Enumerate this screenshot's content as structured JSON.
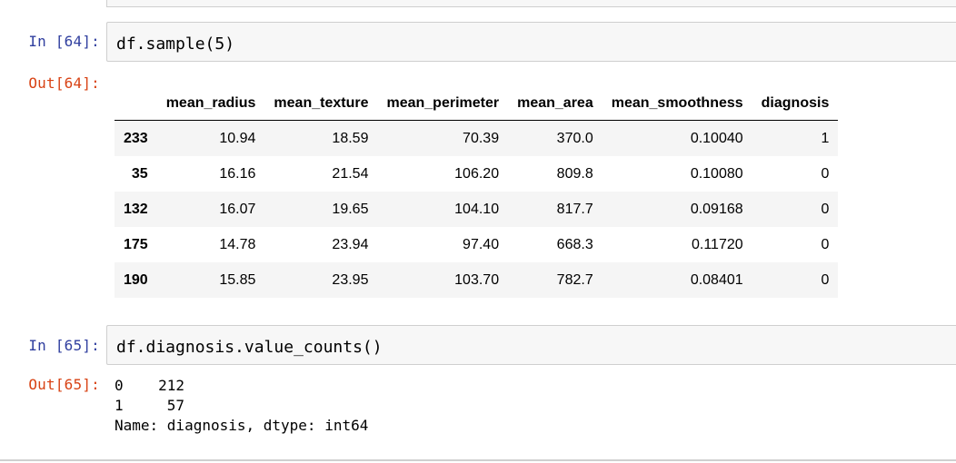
{
  "cells": [
    {
      "in_prompt": "In [64]:",
      "code": "df.sample(5)",
      "out_prompt": "Out[64]:",
      "table": {
        "columns": [
          "",
          "mean_radius",
          "mean_texture",
          "mean_perimeter",
          "mean_area",
          "mean_smoothness",
          "diagnosis"
        ],
        "rows": [
          {
            "index": "233",
            "values": [
              "10.94",
              "18.59",
              "70.39",
              "370.0",
              "0.10040",
              "1"
            ]
          },
          {
            "index": "35",
            "values": [
              "16.16",
              "21.54",
              "106.20",
              "809.8",
              "0.10080",
              "0"
            ]
          },
          {
            "index": "132",
            "values": [
              "16.07",
              "19.65",
              "104.10",
              "817.7",
              "0.09168",
              "0"
            ]
          },
          {
            "index": "175",
            "values": [
              "14.78",
              "23.94",
              "97.40",
              "668.3",
              "0.11720",
              "0"
            ]
          },
          {
            "index": "190",
            "values": [
              "15.85",
              "23.95",
              "103.70",
              "782.7",
              "0.08401",
              "0"
            ]
          }
        ]
      }
    },
    {
      "in_prompt": "In [65]:",
      "code": "df.diagnosis.value_counts()",
      "out_prompt": "Out[65]:",
      "output_lines": [
        "0    212",
        "1     57",
        "Name: diagnosis, dtype: int64"
      ]
    }
  ]
}
